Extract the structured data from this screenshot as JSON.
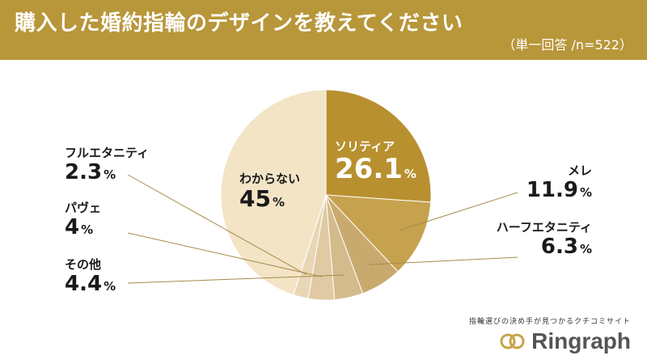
{
  "header": {
    "title": "購入した婚約指輪のデザインを教えてください",
    "subtitle": "（単一回答 /n=522）",
    "background": "#b8963a"
  },
  "chart_data": {
    "type": "pie",
    "title": "購入した婚約指輪のデザインを教えてください",
    "n": 522,
    "start": "top, clockwise",
    "slices": [
      {
        "label": "ソリティア",
        "value": 26.1,
        "color": "#b8902f"
      },
      {
        "label": "メレ",
        "value": 11.9,
        "color": "#c6a24f"
      },
      {
        "label": "ハーフエタニティ",
        "value": 6.3,
        "color": "#c9aa6e"
      },
      {
        "label": "その他",
        "value": 4.4,
        "color": "#d4bb8c"
      },
      {
        "label": "パヴェ",
        "value": 4.0,
        "color": "#e0c9a3"
      },
      {
        "label": "フルエタニティ",
        "value": 2.3,
        "color": "#e8d6b5"
      },
      {
        "label": "わからない",
        "value": 45.0,
        "color": "#f3e4c6"
      }
    ],
    "unit": "%"
  },
  "brand": {
    "tagline": "指輪選びの決め手が見つかるクチコミサイト",
    "name": "Ringraph",
    "icon": "ring-logo-icon"
  }
}
